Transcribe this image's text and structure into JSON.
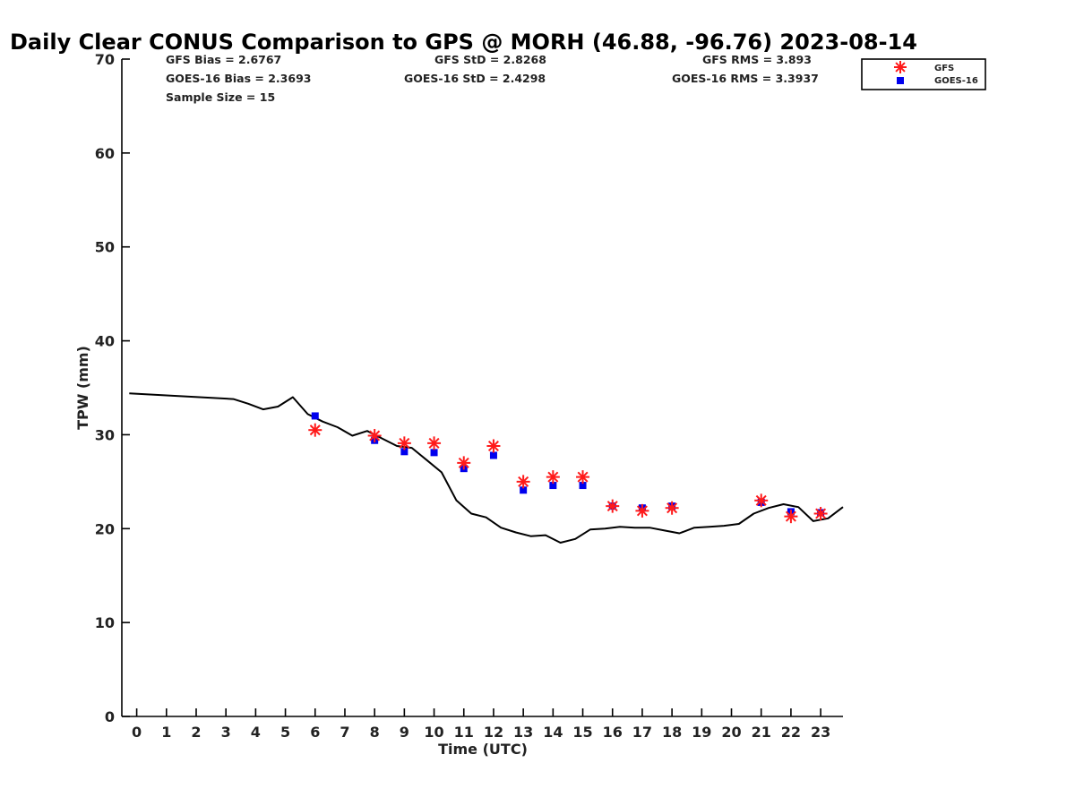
{
  "chart_data": {
    "type": "scatter",
    "title": "Daily Clear CONUS Comparison to GPS @ MORH (46.88, -96.76) 2023-08-14",
    "xlabel": "Time (UTC)",
    "ylabel": "TPW (mm)",
    "xlim": [
      -0.5,
      23.75
    ],
    "ylim": [
      0,
      70
    ],
    "xticks": [
      0,
      1,
      2,
      3,
      4,
      5,
      6,
      7,
      8,
      9,
      10,
      11,
      12,
      13,
      14,
      15,
      16,
      17,
      18,
      19,
      20,
      21,
      22,
      23
    ],
    "yticks": [
      0,
      10,
      20,
      30,
      40,
      50,
      60,
      70
    ],
    "stats": [
      "GFS Bias = 2.6767",
      "GFS StD = 2.8268",
      "GFS RMS = 3.893",
      "GOES-16 Bias = 2.3693",
      "GOES-16 StD = 2.4298",
      "GOES-16 RMS = 3.3937",
      "Sample Size = 15"
    ],
    "legend": {
      "position": "top-right",
      "entries": [
        "GFS",
        "GOES-16"
      ]
    },
    "series": [
      {
        "name": "GPS",
        "style": "line",
        "color": "#000000",
        "x": [
          -0.25,
          3.25,
          3.75,
          4.25,
          4.75,
          5.25,
          5.75,
          6.25,
          6.75,
          7.25,
          7.75,
          8.25,
          8.75,
          9.25,
          9.75,
          10.25,
          10.75,
          11.25,
          11.75,
          12.25,
          12.75,
          13.25,
          13.75,
          14.25,
          14.75,
          15.25,
          15.75,
          16.25,
          16.75,
          17.25,
          17.75,
          18.25,
          18.75,
          19.25,
          19.75,
          20.25,
          20.75,
          21.25,
          21.75,
          22.25,
          22.75,
          23.25,
          23.75
        ],
        "y": [
          34.4,
          33.8,
          33.3,
          32.7,
          33.0,
          34.0,
          32.2,
          31.4,
          30.8,
          29.9,
          30.4,
          29.6,
          28.8,
          28.6,
          27.3,
          26.0,
          23.0,
          21.6,
          21.2,
          20.1,
          19.6,
          19.2,
          19.3,
          18.5,
          18.9,
          19.9,
          20.0,
          20.2,
          20.1,
          20.1,
          19.8,
          19.5,
          20.1,
          20.2,
          20.3,
          20.5,
          21.6,
          22.2,
          22.6,
          22.3,
          20.8,
          21.1,
          22.3
        ]
      },
      {
        "name": "GFS",
        "style": "star",
        "color": "#ff1a1a",
        "x": [
          6,
          8,
          9,
          10,
          11,
          12,
          13,
          14,
          15,
          16,
          17,
          18,
          21,
          22,
          23
        ],
        "y": [
          30.5,
          29.9,
          29.1,
          29.1,
          27.0,
          28.8,
          25.0,
          25.5,
          25.5,
          22.4,
          21.9,
          22.2,
          23.0,
          21.3,
          21.6
        ]
      },
      {
        "name": "GOES-16",
        "style": "square",
        "color": "#0000ee",
        "x": [
          6,
          8,
          9,
          10,
          11,
          12,
          13,
          14,
          15,
          16,
          17,
          18,
          21,
          22,
          23
        ],
        "y": [
          32.0,
          29.4,
          28.2,
          28.1,
          26.4,
          27.8,
          24.1,
          24.6,
          24.6,
          22.4,
          22.2,
          22.4,
          22.8,
          21.8,
          21.7
        ]
      }
    ]
  }
}
